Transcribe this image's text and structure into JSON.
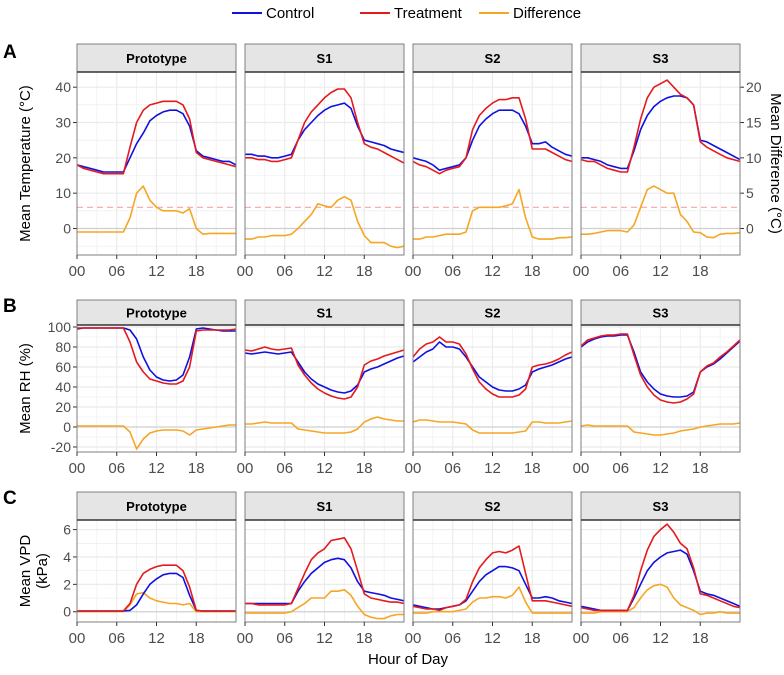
{
  "legend": {
    "items": [
      {
        "label": "Control",
        "color": "#1010e0"
      },
      {
        "label": "Treatment",
        "color": "#e41a1c"
      },
      {
        "label": "Difference",
        "color": "#f5a623"
      }
    ]
  },
  "x_axis_title": "Hour of Day",
  "chart_data": [
    {
      "type": "line",
      "panel_label": "A",
      "ylabel": "Mean Temperature (°C)",
      "secondary_ylabel": "Mean Difference (°C)",
      "secondary_scale_note": "Difference plotted on right axis (right = left / 2)",
      "secondary_ticks": [
        0,
        5,
        10,
        15,
        20
      ],
      "ylim": [
        -7.5,
        44.3
      ],
      "yticks": [
        0,
        10,
        20,
        30,
        40
      ],
      "x_ticks": [
        "00",
        "06",
        "12",
        "18"
      ],
      "xlim": [
        0,
        24
      ],
      "reference_line": {
        "value_difference": 3,
        "style": "dashed",
        "color": "#f4a6a6"
      },
      "facets": [
        {
          "name": "Prototype",
          "control": [
            18,
            17.5,
            17,
            16.5,
            16,
            16,
            16,
            16,
            20,
            24,
            27,
            30.5,
            32,
            33,
            33.5,
            33.5,
            32.5,
            29,
            22,
            20.5,
            20,
            19.5,
            19,
            19,
            18
          ],
          "treatment": [
            18,
            17,
            16.5,
            16,
            15.5,
            15.5,
            15.5,
            15.5,
            23,
            30,
            33.5,
            35,
            35.5,
            36,
            36,
            36,
            35,
            31,
            21.5,
            20,
            19.5,
            19,
            18.5,
            18,
            17.5
          ],
          "difference": [
            -0.5,
            -0.5,
            -0.5,
            -0.5,
            -0.5,
            -0.5,
            -0.5,
            -0.5,
            1.5,
            5,
            6,
            4,
            3,
            2.5,
            2.5,
            2.5,
            2.2,
            2.8,
            0,
            -0.8,
            -0.7,
            -0.7,
            -0.7,
            -0.7,
            -0.7
          ]
        },
        {
          "name": "S1",
          "control": [
            21,
            21,
            20.5,
            20.5,
            20,
            20,
            20.5,
            21,
            25,
            28,
            30,
            32,
            33.5,
            34.5,
            35,
            35.5,
            34,
            29,
            25,
            24.5,
            24,
            23.5,
            22.5,
            22,
            21.5
          ],
          "treatment": [
            20,
            20,
            19.5,
            19.5,
            19,
            19,
            19.5,
            20,
            25,
            30,
            33,
            35,
            37,
            38.5,
            39.5,
            39.5,
            37,
            30,
            24,
            23,
            22.5,
            21.5,
            20.5,
            19.5,
            18.5
          ],
          "difference": [
            -1.5,
            -1.5,
            -1.2,
            -1.2,
            -1,
            -1,
            -1,
            -0.8,
            0,
            1,
            2,
            3.5,
            3.2,
            3,
            4,
            4.5,
            4,
            1,
            -1,
            -2,
            -2,
            -2,
            -2.5,
            -2.7,
            -2.5
          ]
        },
        {
          "name": "S2",
          "control": [
            20,
            19.5,
            19,
            18,
            16.5,
            17,
            17.5,
            18,
            20,
            25,
            29,
            31,
            32.5,
            33.5,
            33.5,
            33.5,
            32.5,
            29,
            24,
            24,
            24.5,
            23,
            22,
            21,
            20.5
          ],
          "treatment": [
            19,
            18,
            17.5,
            16.5,
            15.5,
            16.5,
            17,
            17.5,
            20,
            28,
            32,
            34,
            35.5,
            36.5,
            36.5,
            37,
            37,
            31,
            22.5,
            22.5,
            22.5,
            21.5,
            20.5,
            19.5,
            19
          ],
          "difference": [
            -1.5,
            -1.5,
            -1.2,
            -1.2,
            -1,
            -0.8,
            -0.8,
            -0.8,
            -0.5,
            2.5,
            3,
            3,
            3,
            3,
            3.2,
            3.5,
            5.5,
            1.5,
            -1.2,
            -1.5,
            -1.5,
            -1.5,
            -1.3,
            -1.3,
            -1.2
          ]
        },
        {
          "name": "S3",
          "control": [
            20,
            20,
            19.5,
            19,
            18,
            17.5,
            17,
            17,
            22,
            28,
            32,
            34.5,
            36,
            37,
            37.5,
            37.5,
            37,
            35,
            25,
            24.5,
            23.5,
            22.5,
            21.5,
            20.5,
            19.5
          ],
          "treatment": [
            19.5,
            19,
            19,
            18,
            17,
            16.5,
            16,
            16,
            23,
            31,
            37,
            40,
            41,
            42,
            40,
            38,
            37,
            35,
            24.5,
            23,
            22,
            21,
            20,
            19.5,
            19
          ],
          "difference": [
            -0.8,
            -0.8,
            -0.7,
            -0.5,
            -0.3,
            -0.3,
            -0.3,
            -0.5,
            0.5,
            3,
            5.5,
            6,
            5.5,
            5,
            5,
            2,
            1,
            -0.5,
            -0.6,
            -1.2,
            -1.3,
            -0.8,
            -0.7,
            -0.7,
            -0.6
          ]
        }
      ]
    },
    {
      "type": "line",
      "panel_label": "B",
      "ylabel": "Mean RH (%)",
      "ylim": [
        -25,
        102
      ],
      "yticks": [
        -20,
        0,
        20,
        40,
        60,
        80,
        100
      ],
      "x_ticks": [
        "00",
        "06",
        "12",
        "18"
      ],
      "xlim": [
        0,
        24
      ],
      "facets": [
        {
          "name": "Prototype",
          "control": [
            98,
            99,
            99,
            99,
            99,
            99,
            99,
            99,
            97,
            88,
            70,
            57,
            50,
            47,
            46,
            47,
            52,
            70,
            98,
            99,
            98,
            97,
            96,
            96,
            96
          ],
          "treatment": [
            99,
            99,
            99,
            99,
            99,
            99,
            99,
            99,
            85,
            65,
            55,
            48,
            46,
            44,
            43,
            43,
            46,
            60,
            96,
            97,
            97,
            97,
            97,
            97,
            98
          ],
          "difference": [
            1,
            1,
            1,
            1,
            1,
            1,
            1,
            1,
            -5,
            -22,
            -12,
            -6,
            -4,
            -3,
            -3,
            -3,
            -4,
            -8,
            -3,
            -2,
            -1,
            0,
            1,
            2,
            2
          ]
        },
        {
          "name": "S1",
          "control": [
            74,
            73,
            74,
            75,
            74,
            73,
            74,
            75,
            65,
            55,
            48,
            43,
            40,
            37,
            35,
            34,
            36,
            42,
            55,
            58,
            60,
            63,
            66,
            69,
            71
          ],
          "treatment": [
            77,
            76,
            78,
            80,
            78,
            77,
            78,
            79,
            62,
            52,
            44,
            38,
            34,
            31,
            29,
            28,
            30,
            40,
            62,
            66,
            68,
            71,
            73,
            75,
            77
          ],
          "difference": [
            3,
            3,
            4,
            5,
            4,
            4,
            4,
            4,
            -2,
            -3,
            -4,
            -5,
            -6,
            -6,
            -6,
            -6,
            -5,
            -2,
            5,
            8,
            10,
            8,
            7,
            6,
            6
          ]
        },
        {
          "name": "S2",
          "control": [
            65,
            70,
            75,
            78,
            85,
            80,
            80,
            78,
            70,
            60,
            50,
            45,
            40,
            37,
            36,
            36,
            38,
            42,
            55,
            58,
            60,
            62,
            65,
            68,
            70
          ],
          "treatment": [
            70,
            78,
            83,
            85,
            90,
            85,
            85,
            83,
            73,
            58,
            45,
            38,
            33,
            30,
            30,
            30,
            32,
            38,
            60,
            62,
            63,
            65,
            68,
            72,
            75
          ],
          "difference": [
            5,
            7,
            7,
            6,
            5,
            5,
            5,
            4,
            3,
            -3,
            -6,
            -6,
            -6,
            -6,
            -6,
            -6,
            -5,
            -4,
            5,
            5,
            4,
            4,
            4,
            5,
            6
          ]
        },
        {
          "name": "S3",
          "control": [
            80,
            85,
            88,
            90,
            91,
            91,
            92,
            92,
            75,
            55,
            45,
            38,
            33,
            31,
            30,
            30,
            31,
            35,
            55,
            60,
            63,
            68,
            74,
            80,
            86
          ],
          "treatment": [
            81,
            87,
            89,
            91,
            92,
            92,
            93,
            93,
            72,
            52,
            40,
            32,
            27,
            25,
            24,
            25,
            28,
            33,
            55,
            61,
            64,
            70,
            75,
            81,
            87
          ],
          "difference": [
            1,
            2,
            1,
            1,
            1,
            1,
            1,
            1,
            -5,
            -6,
            -7,
            -8,
            -8,
            -7,
            -6,
            -4,
            -3,
            -2,
            0,
            1,
            2,
            3,
            3,
            3,
            4
          ]
        }
      ]
    },
    {
      "type": "line",
      "panel_label": "C",
      "ylabel": "Mean VPD (kPa)",
      "ylabel_lines": [
        "Mean VPD",
        "(kPa)"
      ],
      "ylim": [
        -0.75,
        6.7
      ],
      "yticks": [
        0,
        2,
        4,
        6
      ],
      "x_ticks": [
        "00",
        "06",
        "12",
        "18"
      ],
      "xlim": [
        0,
        24
      ],
      "facets": [
        {
          "name": "Prototype",
          "control": [
            0.05,
            0.05,
            0.05,
            0.05,
            0.05,
            0.05,
            0.05,
            0.05,
            0.1,
            0.5,
            1.3,
            2.0,
            2.4,
            2.7,
            2.8,
            2.8,
            2.5,
            1.2,
            0.1,
            0.05,
            0.05,
            0.05,
            0.05,
            0.05,
            0.05
          ],
          "treatment": [
            0.05,
            0.05,
            0.05,
            0.05,
            0.05,
            0.05,
            0.05,
            0.05,
            0.6,
            2.0,
            2.8,
            3.1,
            3.3,
            3.4,
            3.4,
            3.4,
            3.0,
            1.8,
            0.1,
            0.05,
            0.05,
            0.05,
            0.05,
            0.05,
            0.05
          ],
          "difference": [
            0,
            0,
            0,
            0,
            0,
            0,
            0,
            0,
            0.5,
            1.3,
            1.4,
            1.0,
            0.8,
            0.7,
            0.6,
            0.6,
            0.5,
            0.6,
            0,
            0,
            0,
            0,
            0,
            0,
            0
          ]
        },
        {
          "name": "S1",
          "control": [
            0.6,
            0.6,
            0.6,
            0.6,
            0.6,
            0.6,
            0.6,
            0.6,
            1.5,
            2.2,
            2.8,
            3.2,
            3.6,
            3.8,
            3.9,
            3.8,
            3.2,
            2.2,
            1.5,
            1.4,
            1.3,
            1.2,
            1.0,
            0.9,
            0.8
          ],
          "treatment": [
            0.6,
            0.6,
            0.5,
            0.5,
            0.5,
            0.5,
            0.5,
            0.6,
            1.7,
            2.8,
            3.8,
            4.3,
            4.6,
            5.2,
            5.3,
            5.4,
            4.6,
            3.0,
            1.3,
            1.0,
            0.9,
            0.8,
            0.7,
            0.7,
            0.6
          ],
          "difference": [
            -0.1,
            -0.1,
            -0.1,
            -0.1,
            -0.1,
            -0.1,
            -0.1,
            0,
            0.3,
            0.6,
            1.0,
            1.0,
            1.0,
            1.5,
            1.5,
            1.6,
            1.2,
            0.4,
            -0.2,
            -0.4,
            -0.5,
            -0.5,
            -0.3,
            -0.2,
            -0.2
          ]
        },
        {
          "name": "S2",
          "control": [
            0.5,
            0.4,
            0.3,
            0.2,
            0.2,
            0.3,
            0.4,
            0.5,
            0.8,
            1.5,
            2.2,
            2.7,
            3.0,
            3.3,
            3.3,
            3.2,
            3.0,
            2.0,
            1.0,
            1.0,
            1.1,
            1.0,
            0.8,
            0.7,
            0.6
          ],
          "treatment": [
            0.4,
            0.3,
            0.2,
            0.2,
            0.1,
            0.3,
            0.4,
            0.5,
            0.9,
            2.2,
            3.2,
            3.8,
            4.3,
            4.4,
            4.3,
            4.5,
            4.8,
            2.8,
            0.8,
            0.8,
            0.8,
            0.7,
            0.6,
            0.5,
            0.4
          ],
          "difference": [
            -0.1,
            -0.1,
            -0.1,
            0,
            0,
            0,
            0,
            0.1,
            0.2,
            0.7,
            1.0,
            1.0,
            1.1,
            1.1,
            1.0,
            1.2,
            1.8,
            0.7,
            -0.1,
            -0.1,
            -0.1,
            -0.1,
            -0.1,
            -0.1,
            -0.1
          ]
        },
        {
          "name": "S3",
          "control": [
            0.4,
            0.3,
            0.2,
            0.1,
            0.1,
            0.1,
            0.1,
            0.1,
            1.0,
            2.0,
            3.0,
            3.6,
            4.0,
            4.3,
            4.4,
            4.5,
            4.2,
            3.0,
            1.5,
            1.3,
            1.2,
            1.0,
            0.8,
            0.6,
            0.4
          ],
          "treatment": [
            0.3,
            0.2,
            0.1,
            0.1,
            0.1,
            0.1,
            0.1,
            0.1,
            1.2,
            3.0,
            4.5,
            5.5,
            6.0,
            6.4,
            5.8,
            5.0,
            4.6,
            3.2,
            1.3,
            1.2,
            1.0,
            0.8,
            0.6,
            0.4,
            0.3
          ],
          "difference": [
            -0.1,
            -0.1,
            -0.1,
            0,
            0,
            0,
            0,
            0,
            0.3,
            1.0,
            1.6,
            1.9,
            2.0,
            1.8,
            1.0,
            0.5,
            0.3,
            0.1,
            -0.2,
            -0.1,
            -0.1,
            0,
            -0.1,
            -0.1,
            -0.1
          ]
        }
      ]
    }
  ]
}
